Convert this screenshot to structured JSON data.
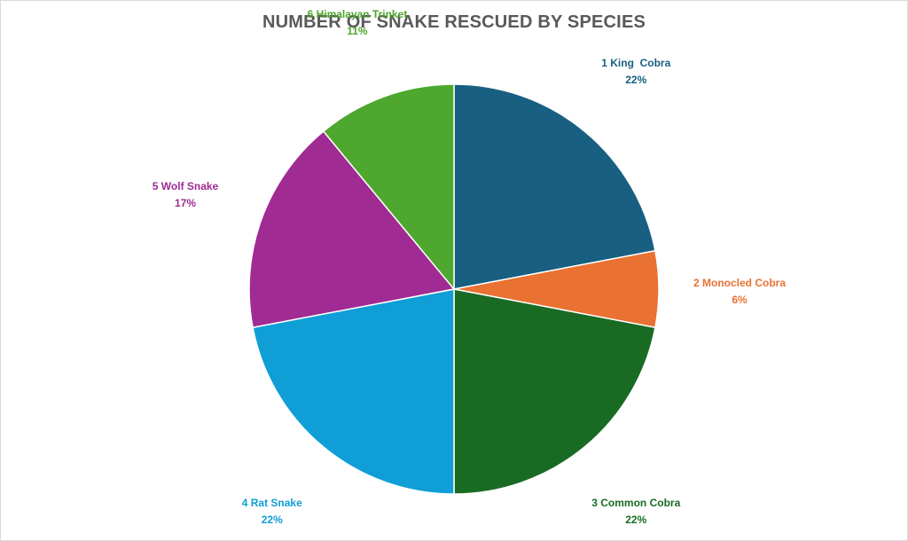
{
  "chart_data": {
    "type": "pie",
    "title": "NUMBER OF SNAKE RESCUED BY SPECIES",
    "slices": [
      {
        "label": "1 King  Cobra",
        "value": 22,
        "percent_label": "22%",
        "color": "#185f82"
      },
      {
        "label": "2 Monocled Cobra",
        "value": 6,
        "percent_label": "6%",
        "color": "#e97132"
      },
      {
        "label": "3 Common Cobra",
        "value": 22,
        "percent_label": "22%",
        "color": "#196b24"
      },
      {
        "label": "4 Rat Snake",
        "value": 22,
        "percent_label": "22%",
        "color": "#0f9ed5"
      },
      {
        "label": "5 Wolf Snake",
        "value": 17,
        "percent_label": "17%",
        "color": "#a02b93"
      },
      {
        "label": "6 Himalayan Trinket",
        "value": 11,
        "percent_label": "11%",
        "color": "#4ea72e"
      }
    ],
    "start": "top",
    "direction": "clockwise",
    "legend": "none",
    "data_labels": "outside"
  }
}
